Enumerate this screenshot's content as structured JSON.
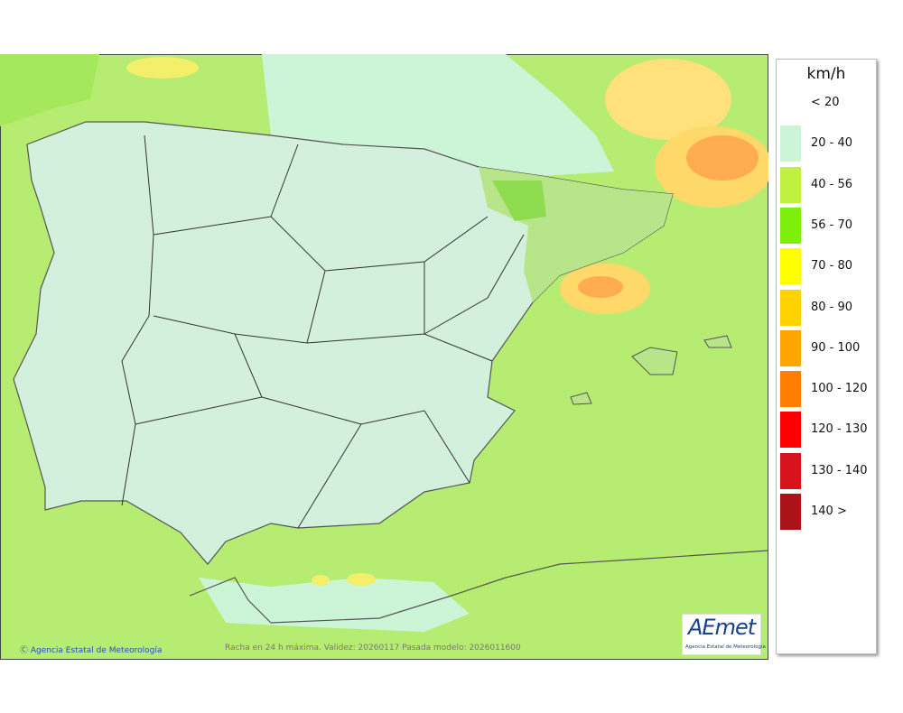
{
  "legend": {
    "title": "km/h",
    "items": [
      {
        "label": "< 20",
        "color": "#ffffff"
      },
      {
        "label": "20 - 40",
        "color": "#ccf5d8"
      },
      {
        "label": "40 - 56",
        "color": "#c2f042"
      },
      {
        "label": "56 - 70",
        "color": "#7cf00a"
      },
      {
        "label": "70 - 80",
        "color": "#ffff00"
      },
      {
        "label": "80 - 90",
        "color": "#ffd200"
      },
      {
        "label": "90 - 100",
        "color": "#ffa500"
      },
      {
        "label": "100 - 120",
        "color": "#ff8000"
      },
      {
        "label": "120 - 130",
        "color": "#ff0000"
      },
      {
        "label": "130 - 140",
        "color": "#d7141e"
      },
      {
        "label": "140 >",
        "color": "#aa1418"
      }
    ]
  },
  "footer": {
    "copyright": "Ⓒ Agencia Estatal de Meteorología",
    "caption": "Racha en 24 h máxima. Validez: 20260117 Pasada modelo: 2026011600"
  },
  "logo": {
    "name": "AEmet",
    "subtitle": "Agencia Estatal de Meteorología"
  }
}
